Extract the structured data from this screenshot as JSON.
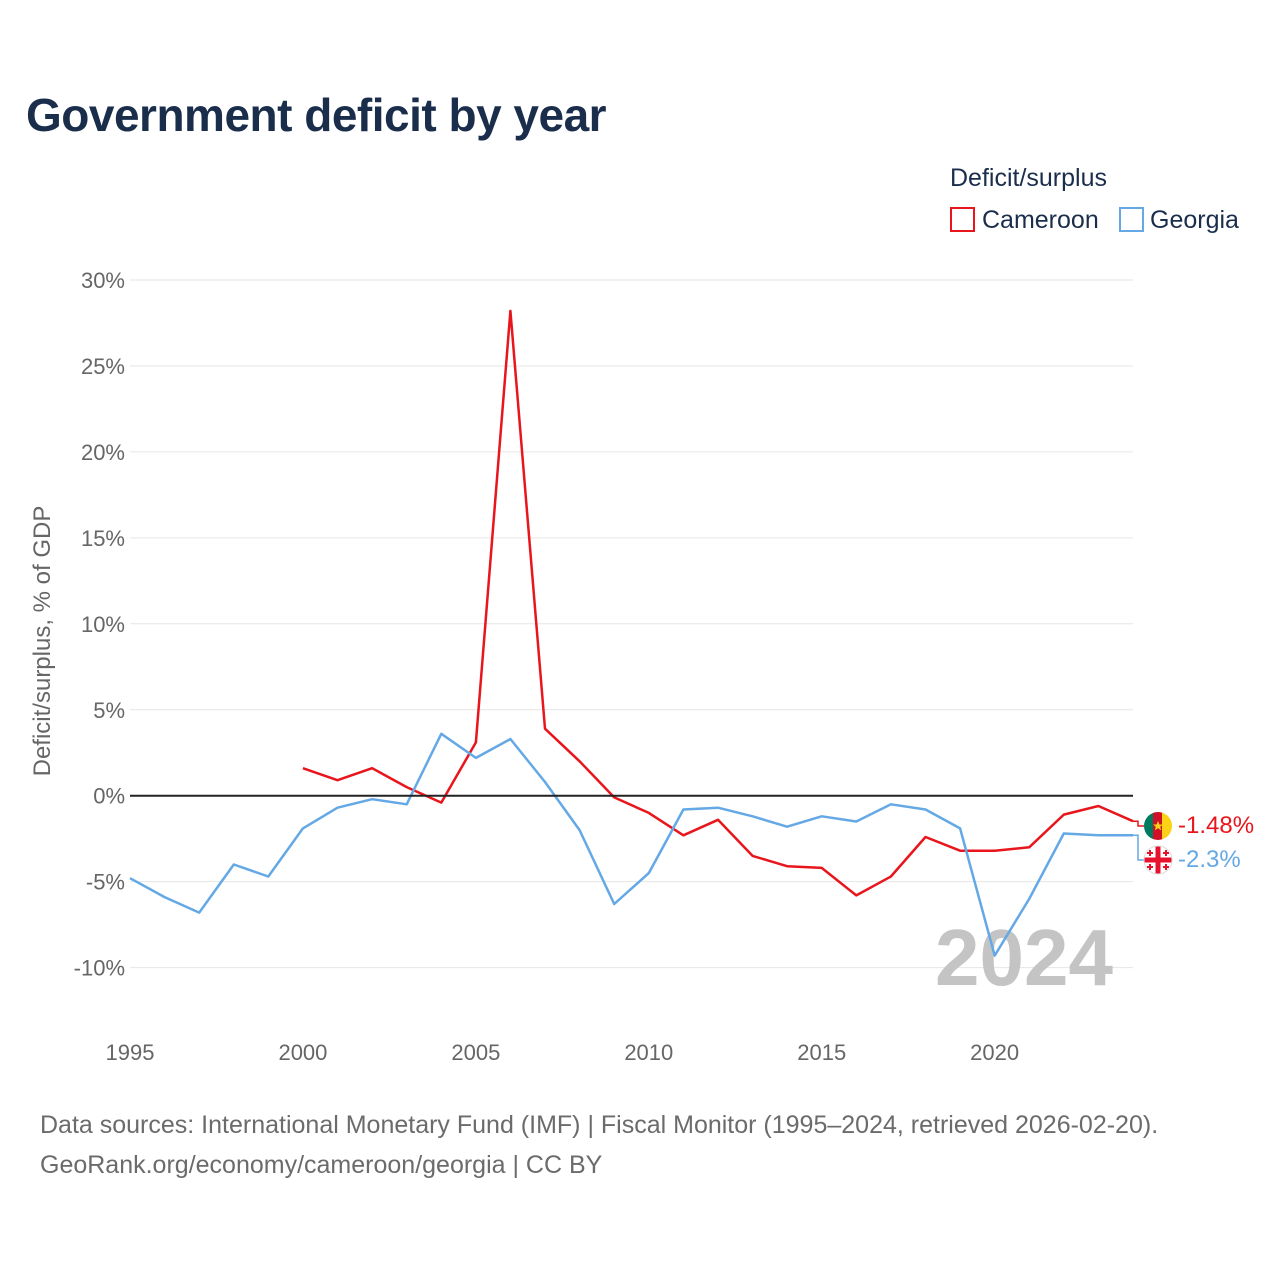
{
  "title": "Government deficit by year",
  "footer": {
    "line1": "Data sources: International Monetary Fund (IMF) | Fiscal Monitor (1995–2024, retrieved 2026-02-20).",
    "line2": "GeoRank.org/economy/cameroon/georgia | CC BY"
  },
  "colors": {
    "cameroon": "#e8161c",
    "georgia": "#64a8e6",
    "zero_line": "#222222",
    "grid": "#e6e6e6"
  },
  "chart_data": {
    "type": "line",
    "title": "Government deficit by year",
    "xlabel": "",
    "ylabel": "Deficit/surplus, % of GDP",
    "xlim": [
      1995,
      2024
    ],
    "ylim": [
      -12,
      30
    ],
    "y_ticks": [
      30,
      25,
      20,
      15,
      10,
      5,
      0,
      -5,
      -10
    ],
    "y_tick_labels": [
      "30%",
      "25%",
      "20%",
      "15%",
      "10%",
      "5%",
      "0%",
      "-5%",
      "-10%"
    ],
    "x_ticks": [
      1995,
      2000,
      2005,
      2010,
      2015,
      2020
    ],
    "x_tick_labels": [
      "1995",
      "2000",
      "2005",
      "2010",
      "2015",
      "2020"
    ],
    "legend_title": "Deficit/surplus",
    "legend_position": "top-right",
    "watermark": "2024",
    "series": [
      {
        "name": "Cameroon",
        "color": "#e8161c",
        "end_label": "-1.48%",
        "flag_icon": "cameroon-flag-icon",
        "x": [
          2000,
          2001,
          2002,
          2003,
          2004,
          2005,
          2006,
          2007,
          2008,
          2009,
          2010,
          2011,
          2012,
          2013,
          2014,
          2015,
          2016,
          2017,
          2018,
          2019,
          2020,
          2021,
          2022,
          2023,
          2024
        ],
        "values": [
          1.6,
          0.9,
          1.6,
          0.5,
          -0.4,
          3.1,
          28.2,
          3.9,
          2.0,
          -0.1,
          -1.0,
          -2.3,
          -1.4,
          -3.5,
          -4.1,
          -4.2,
          -5.8,
          -4.7,
          -2.4,
          -3.2,
          -3.2,
          -3.0,
          -1.1,
          -0.6,
          -1.48
        ]
      },
      {
        "name": "Georgia",
        "color": "#64a8e6",
        "end_label": "-2.3%",
        "flag_icon": "georgia-flag-icon",
        "x": [
          1995,
          1996,
          1997,
          1998,
          1999,
          2000,
          2001,
          2002,
          2003,
          2004,
          2005,
          2006,
          2007,
          2008,
          2009,
          2010,
          2011,
          2012,
          2013,
          2014,
          2015,
          2016,
          2017,
          2018,
          2019,
          2020,
          2021,
          2022,
          2023,
          2024
        ],
        "values": [
          -4.8,
          -5.9,
          -6.8,
          -4.0,
          -4.7,
          -1.9,
          -0.7,
          -0.2,
          -0.5,
          3.6,
          2.2,
          3.3,
          0.8,
          -2.0,
          -6.3,
          -4.5,
          -0.8,
          -0.7,
          -1.2,
          -1.8,
          -1.2,
          -1.5,
          -0.5,
          -0.8,
          -1.9,
          -9.3,
          -6.0,
          -2.2,
          -2.3,
          -2.3
        ]
      }
    ]
  }
}
